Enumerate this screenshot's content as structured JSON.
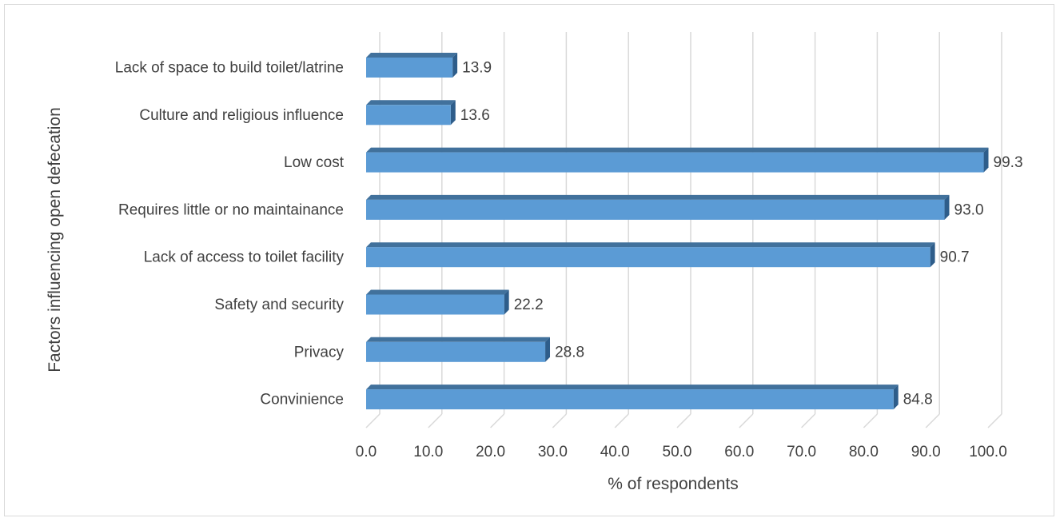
{
  "chart_data": {
    "type": "bar",
    "orientation": "horizontal",
    "style": "3d",
    "xlabel": "% of respondents",
    "ylabel": "Factors influencing open defecation",
    "xlim": [
      0,
      100
    ],
    "x_ticks": [
      "0.0",
      "10.0",
      "20.0",
      "30.0",
      "40.0",
      "50.0",
      "60.0",
      "70.0",
      "80.0",
      "90.0",
      "100.0"
    ],
    "grid": true,
    "legend": "none",
    "bar_color": "#5b9bd5",
    "categories": [
      "Lack of space to build toilet/latrine",
      "Culture and religious influence",
      "Low cost",
      "Requires little or no maintainance",
      "Lack of access to toilet facility",
      "Safety and security",
      "Privacy",
      "Convinience"
    ],
    "values": [
      13.9,
      13.6,
      99.3,
      93.0,
      90.7,
      22.2,
      28.8,
      84.8
    ],
    "value_labels": [
      "13.9",
      "13.6",
      "99.3",
      "93.0",
      "90.7",
      "22.2",
      "28.8",
      "84.8"
    ]
  }
}
